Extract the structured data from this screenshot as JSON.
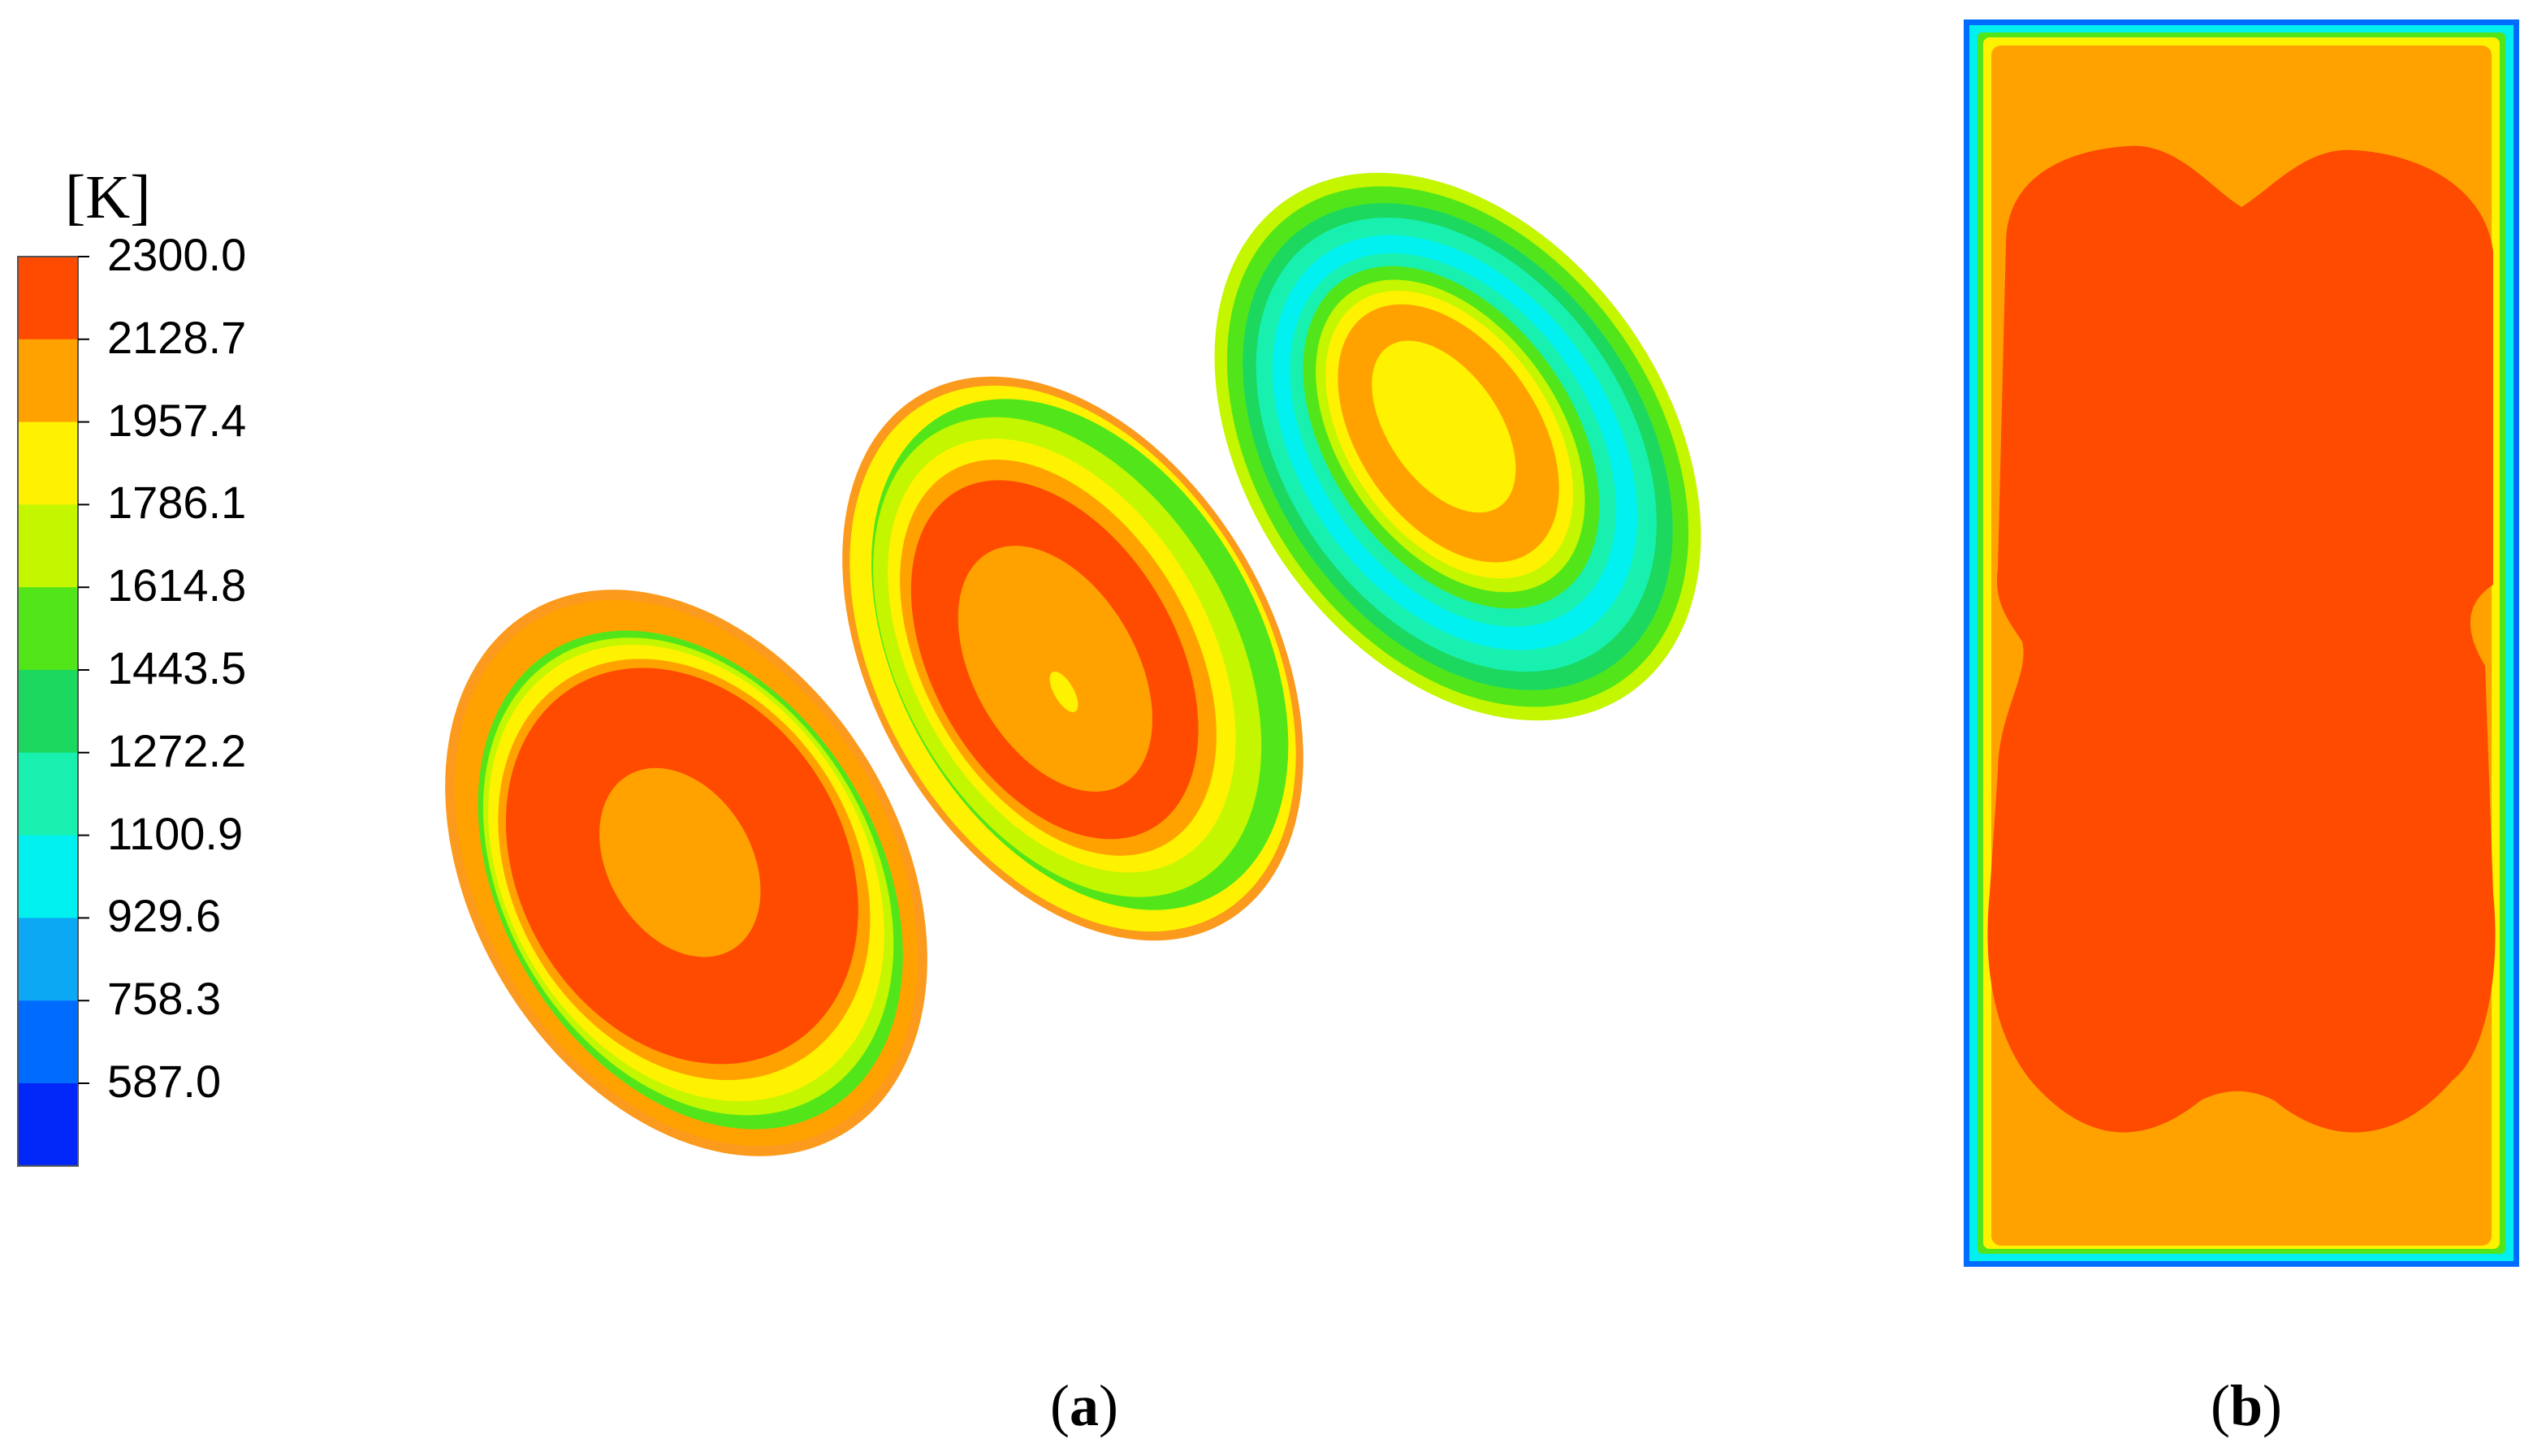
{
  "legend": {
    "unit": "[K]",
    "ticks": [
      "2300.0",
      "2128.7",
      "1957.4",
      "1786.1",
      "1614.8",
      "1443.5",
      "1272.2",
      "1100.9",
      "929.6",
      "758.3",
      "587.0"
    ],
    "bands": [
      "#fe4b00",
      "#ffa200",
      "#fef200",
      "#c4f600",
      "#52e61a",
      "#1cd85f",
      "#18f0b0",
      "#00f0f0",
      "#0ca8f4",
      "#006cff",
      "#0026f8"
    ]
  },
  "palette": {
    "red": "#fe4b00",
    "orange": "#ffa200",
    "yellow": "#fef200",
    "yellowgreen": "#c4f600",
    "green": "#52e61a",
    "teal": "#1cd85f",
    "aqua": "#18f0b0",
    "cyan": "#00f0f0",
    "blue": "#0ca8f4",
    "darkblue": "#006cff"
  },
  "captions": {
    "a": {
      "open": "(",
      "letter": "a",
      "close": ")"
    },
    "b": {
      "open": "(",
      "letter": "b",
      "close": ")"
    }
  }
}
